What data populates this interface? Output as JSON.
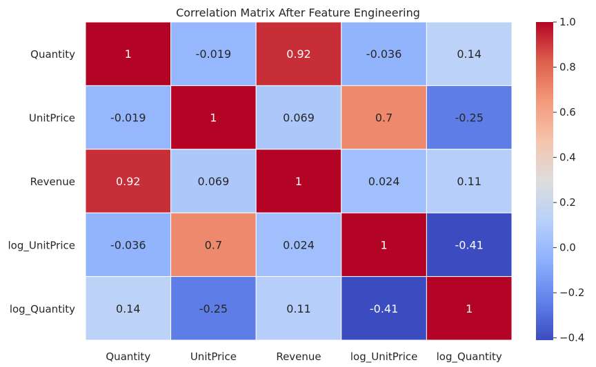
{
  "chart_data": {
    "type": "heatmap",
    "title": "Correlation Matrix After Feature Engineering",
    "x_labels": [
      "Quantity",
      "UnitPrice",
      "Revenue",
      "log_UnitPrice",
      "log_Quantity"
    ],
    "y_labels": [
      "Quantity",
      "UnitPrice",
      "Revenue",
      "log_UnitPrice",
      "log_Quantity"
    ],
    "values": [
      [
        1,
        -0.019,
        0.92,
        -0.036,
        0.14
      ],
      [
        -0.019,
        1,
        0.069,
        0.7,
        -0.25
      ],
      [
        0.92,
        0.069,
        1,
        0.024,
        0.11
      ],
      [
        -0.036,
        0.7,
        0.024,
        1,
        -0.41
      ],
      [
        0.14,
        -0.25,
        0.11,
        -0.41,
        1
      ]
    ],
    "annotations": [
      [
        "1",
        "-0.019",
        "0.92",
        "-0.036",
        "0.14"
      ],
      [
        "-0.019",
        "1",
        "0.069",
        "0.7",
        "-0.25"
      ],
      [
        "0.92",
        "0.069",
        "1",
        "0.024",
        "0.11"
      ],
      [
        "-0.036",
        "0.7",
        "0.024",
        "1",
        "-0.41"
      ],
      [
        "0.14",
        "-0.25",
        "0.11",
        "-0.41",
        "1"
      ]
    ],
    "colormap": "coolwarm",
    "colorbar": {
      "range": [
        -0.41,
        1.0
      ],
      "ticks": [
        1.0,
        0.8,
        0.6,
        0.4,
        0.2,
        0.0,
        -0.2,
        -0.4
      ],
      "tick_labels": [
        "1.0",
        "0.8",
        "0.6",
        "0.4",
        "0.2",
        "0.0",
        "−0.2",
        "−0.4"
      ]
    },
    "cell_border_color": "#ffffff",
    "grid": false
  }
}
